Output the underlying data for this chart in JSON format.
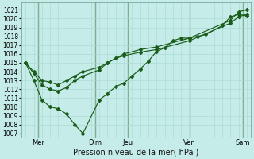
{
  "xlabel": "Pression niveau de la mer( hPa )",
  "bg_color": "#c5ece8",
  "grid_color": "#a8d8d4",
  "line_color": "#1a5c1a",
  "ylim": [
    1006.5,
    1021.8
  ],
  "xlim": [
    -0.5,
    27.5
  ],
  "yticks": [
    1007,
    1008,
    1009,
    1010,
    1011,
    1012,
    1013,
    1014,
    1015,
    1016,
    1017,
    1018,
    1019,
    1020,
    1021
  ],
  "xtick_positions": [
    1.5,
    8.5,
    12.5,
    20.0,
    26.5
  ],
  "xtick_labels": [
    "Mer",
    "Dim",
    "Jeu",
    "Ven",
    "Sam"
  ],
  "vline_positions": [
    1.5,
    8.5,
    12.5,
    20.0,
    26.5
  ],
  "series": [
    {
      "x": [
        0,
        1,
        2,
        3,
        4,
        5,
        6,
        7,
        9,
        10,
        11,
        12,
        14,
        16,
        20,
        25,
        26,
        27
      ],
      "y": [
        1015.0,
        1014.0,
        1013.0,
        1012.8,
        1012.5,
        1013.0,
        1013.5,
        1014.0,
        1014.5,
        1015.0,
        1015.5,
        1015.8,
        1016.2,
        1016.5,
        1017.5,
        1019.5,
        1020.2,
        1020.5
      ]
    },
    {
      "x": [
        0,
        1,
        2,
        3,
        4,
        5,
        6,
        7,
        9,
        10,
        11,
        12,
        13,
        14,
        15,
        16,
        17,
        18,
        19,
        20,
        21,
        22,
        24,
        25,
        26,
        27
      ],
      "y": [
        1015.0,
        1013.0,
        1010.8,
        1010.0,
        1009.8,
        1009.2,
        1008.0,
        1007.0,
        1010.8,
        1011.5,
        1012.3,
        1012.7,
        1013.5,
        1014.3,
        1015.2,
        1016.3,
        1016.7,
        1017.5,
        1017.8,
        1017.8,
        1018.0,
        1018.2,
        1019.2,
        1020.2,
        1020.5,
        1020.3
      ]
    },
    {
      "x": [
        0,
        1,
        2,
        3,
        4,
        5,
        6,
        7,
        9,
        10,
        11,
        12,
        14,
        16,
        20,
        25,
        26,
        27
      ],
      "y": [
        1015.0,
        1013.8,
        1012.5,
        1012.0,
        1011.8,
        1012.2,
        1013.0,
        1013.5,
        1014.2,
        1015.0,
        1015.5,
        1016.0,
        1016.5,
        1016.8,
        1017.8,
        1019.8,
        1020.8,
        1021.0
      ]
    }
  ]
}
